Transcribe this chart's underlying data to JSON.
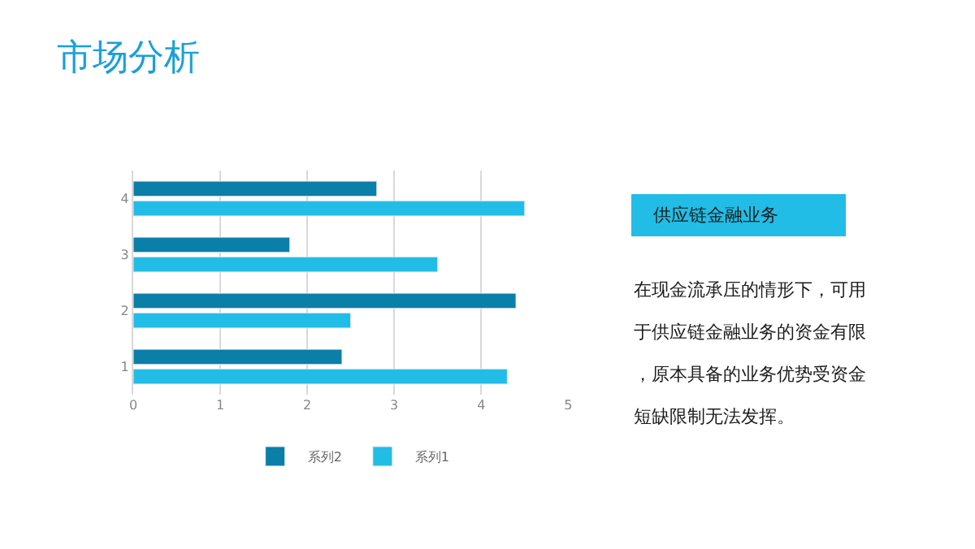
{
  "chart_data": {
    "type": "bar",
    "orientation": "horizontal",
    "title": "市场分析",
    "categories": [
      "4",
      "3",
      "2",
      "1"
    ],
    "series": [
      {
        "name": "系列1",
        "color": "#22bde6",
        "values": [
          4.5,
          3.5,
          2.5,
          4.3
        ]
      },
      {
        "name": "系列2",
        "color": "#0a7fa8",
        "values": [
          2.8,
          1.8,
          4.4,
          2.4
        ]
      }
    ],
    "xlim": [
      0,
      5
    ],
    "xticks": [
      0,
      1,
      2,
      3,
      4,
      5
    ],
    "grid": "x",
    "legend": "bottom",
    "annotations": [
      "供应链金融业务",
      "在现金流承压的情形下，可用于供应链金融业务的资金有限，原本具备的业务优势受资金短缺限制无法发挥。"
    ]
  }
}
